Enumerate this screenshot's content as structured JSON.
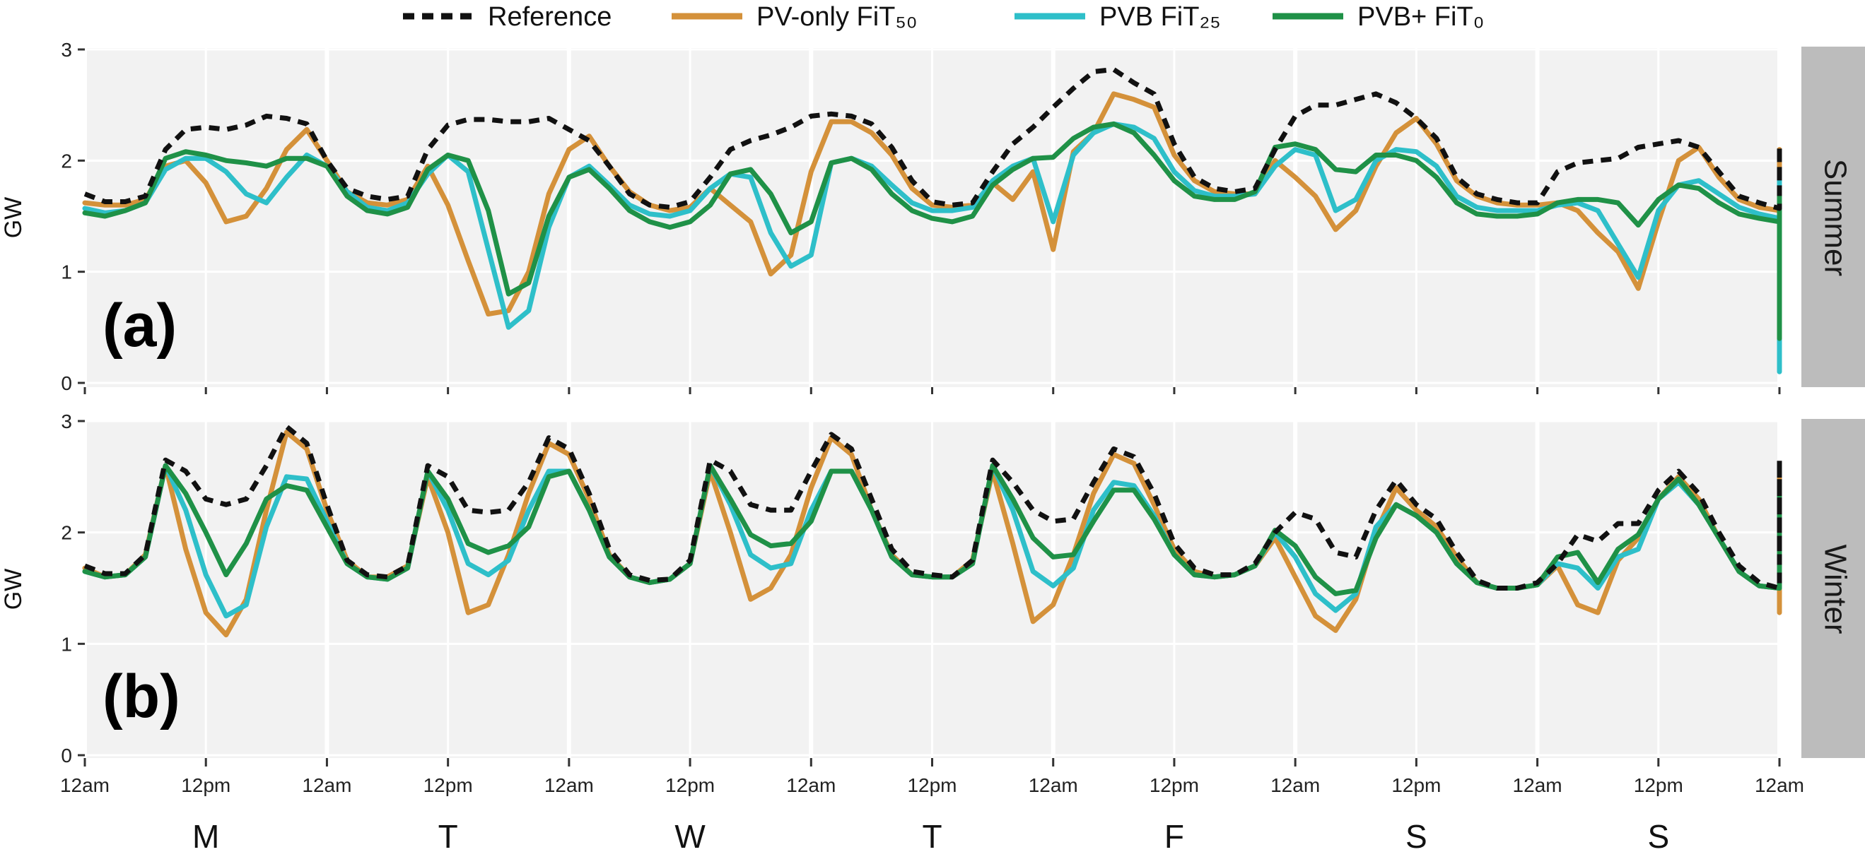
{
  "chart_data": {
    "type": "line",
    "ylabel": "GW",
    "ylim": [
      0,
      3
    ],
    "yticks": [
      "0",
      "1",
      "2",
      "3"
    ],
    "x_tick_labels": [
      "12am",
      "12pm",
      "12am",
      "12pm",
      "12am",
      "12pm",
      "12am",
      "12pm",
      "12am",
      "12pm",
      "12am",
      "12pm",
      "12am",
      "12pm",
      "12am"
    ],
    "day_labels": [
      "M",
      "T",
      "W",
      "T",
      "F",
      "S",
      "S"
    ],
    "hours_per_point": 2,
    "legend": [
      {
        "name": "Reference",
        "color": "#111111",
        "dash": true
      },
      {
        "name": "PV-only FiT₅₀",
        "color": "#D4913A",
        "dash": false
      },
      {
        "name": "PVB FiT₂₅",
        "color": "#2EBFC9",
        "dash": false
      },
      {
        "name": "PVB+ FiT₀",
        "color": "#1F9147",
        "dash": false
      }
    ],
    "panels": [
      {
        "tag": "(a)",
        "strip": "Summer",
        "series": [
          {
            "name": "Reference",
            "values": [
              1.7,
              1.63,
              1.63,
              1.68,
              2.1,
              2.28,
              2.3,
              2.28,
              2.32,
              2.4,
              2.38,
              2.33,
              2.0,
              1.75,
              1.68,
              1.65,
              1.68,
              2.1,
              2.32,
              2.37,
              2.37,
              2.35,
              2.35,
              2.38,
              2.28,
              2.18,
              1.95,
              1.7,
              1.6,
              1.58,
              1.63,
              1.85,
              2.1,
              2.18,
              2.23,
              2.3,
              2.4,
              2.42,
              2.4,
              2.33,
              2.12,
              1.82,
              1.63,
              1.6,
              1.62,
              1.9,
              2.15,
              2.3,
              2.48,
              2.65,
              2.8,
              2.82,
              2.7,
              2.6,
              2.15,
              1.85,
              1.75,
              1.72,
              1.75,
              2.1,
              2.4,
              2.5,
              2.5,
              2.55,
              2.6,
              2.52,
              2.38,
              2.2,
              1.85,
              1.7,
              1.65,
              1.62,
              1.62,
              1.9,
              1.98,
              2.0,
              2.02,
              2.12,
              2.15,
              2.18,
              2.12,
              1.9,
              1.68,
              1.62,
              1.57,
              1.57,
              1.62,
              1.8,
              1.88,
              1.93,
              1.97,
              2.03,
              2.1,
              2.13,
              2.13,
              2.0,
              1.72
            ]
          },
          {
            "name": "PV-only FiT₅₀",
            "values": [
              1.62,
              1.6,
              1.6,
              1.65,
              1.95,
              2.0,
              1.8,
              1.45,
              1.5,
              1.75,
              2.1,
              2.28,
              2.0,
              1.72,
              1.62,
              1.6,
              1.65,
              1.95,
              1.6,
              1.1,
              0.62,
              0.65,
              1.0,
              1.7,
              2.1,
              2.22,
              1.95,
              1.72,
              1.6,
              1.55,
              1.58,
              1.75,
              1.6,
              1.45,
              0.98,
              1.15,
              1.9,
              2.35,
              2.35,
              2.25,
              2.05,
              1.75,
              1.6,
              1.58,
              1.6,
              1.8,
              1.65,
              1.9,
              1.2,
              2.08,
              2.25,
              2.6,
              2.55,
              2.48,
              2.05,
              1.82,
              1.72,
              1.7,
              1.7,
              2.0,
              1.85,
              1.68,
              1.38,
              1.55,
              1.95,
              2.25,
              2.38,
              2.15,
              1.82,
              1.68,
              1.62,
              1.6,
              1.6,
              1.62,
              1.55,
              1.35,
              1.18,
              0.85,
              1.45,
              2.0,
              2.12,
              1.85,
              1.65,
              1.58,
              1.55,
              1.53,
              1.5,
              1.45,
              1.05,
              0.6,
              0.22,
              0.35,
              1.1,
              1.8,
              2.05,
              2.1,
              1.72
            ]
          },
          {
            "name": "PVB FiT₂₅",
            "values": [
              1.57,
              1.53,
              1.55,
              1.62,
              1.92,
              2.02,
              2.02,
              1.9,
              1.7,
              1.62,
              1.85,
              2.05,
              1.95,
              1.72,
              1.58,
              1.55,
              1.62,
              1.88,
              2.05,
              1.9,
              1.2,
              0.5,
              0.65,
              1.4,
              1.85,
              1.95,
              1.78,
              1.6,
              1.52,
              1.5,
              1.55,
              1.75,
              1.88,
              1.85,
              1.35,
              1.05,
              1.15,
              1.98,
              2.02,
              1.95,
              1.78,
              1.62,
              1.55,
              1.55,
              1.58,
              1.82,
              1.95,
              2.02,
              1.45,
              2.05,
              2.25,
              2.33,
              2.3,
              2.2,
              1.9,
              1.73,
              1.68,
              1.68,
              1.7,
              1.95,
              2.1,
              2.05,
              1.55,
              1.65,
              2.0,
              2.1,
              2.08,
              1.95,
              1.68,
              1.58,
              1.55,
              1.55,
              1.55,
              1.6,
              1.62,
              1.55,
              1.25,
              0.95,
              1.55,
              1.78,
              1.82,
              1.7,
              1.58,
              1.52,
              1.48,
              1.48,
              1.5,
              1.45,
              1.3,
              0.55,
              0.1,
              0.45,
              1.3,
              1.75,
              1.85,
              1.8,
              1.62
            ]
          },
          {
            "name": "PVB+ FiT₀",
            "values": [
              1.53,
              1.5,
              1.55,
              1.62,
              2.02,
              2.08,
              2.05,
              2.0,
              1.98,
              1.95,
              2.02,
              2.02,
              1.95,
              1.68,
              1.55,
              1.52,
              1.58,
              1.92,
              2.05,
              2.0,
              1.55,
              0.8,
              0.9,
              1.5,
              1.85,
              1.92,
              1.75,
              1.55,
              1.45,
              1.4,
              1.45,
              1.6,
              1.88,
              1.92,
              1.7,
              1.35,
              1.45,
              1.98,
              2.02,
              1.92,
              1.7,
              1.55,
              1.48,
              1.45,
              1.5,
              1.78,
              1.92,
              2.02,
              2.03,
              2.2,
              2.3,
              2.33,
              2.25,
              2.05,
              1.82,
              1.68,
              1.65,
              1.65,
              1.72,
              2.12,
              2.15,
              2.1,
              1.92,
              1.9,
              2.05,
              2.05,
              2.0,
              1.85,
              1.62,
              1.52,
              1.5,
              1.5,
              1.52,
              1.62,
              1.65,
              1.65,
              1.62,
              1.42,
              1.65,
              1.78,
              1.75,
              1.62,
              1.52,
              1.48,
              1.45,
              1.47,
              1.5,
              1.5,
              1.4,
              0.65,
              0.4,
              0.45,
              1.55,
              1.65,
              1.75,
              1.65,
              1.55
            ]
          }
        ]
      },
      {
        "tag": "(b)",
        "strip": "Winter",
        "series": [
          {
            "name": "Reference",
            "values": [
              1.7,
              1.63,
              1.63,
              1.8,
              2.65,
              2.55,
              2.3,
              2.25,
              2.3,
              2.6,
              2.95,
              2.8,
              2.25,
              1.75,
              1.62,
              1.6,
              1.7,
              2.6,
              2.5,
              2.2,
              2.18,
              2.2,
              2.45,
              2.85,
              2.75,
              2.35,
              1.85,
              1.62,
              1.57,
              1.58,
              1.75,
              2.65,
              2.55,
              2.25,
              2.2,
              2.2,
              2.55,
              2.88,
              2.75,
              2.3,
              1.85,
              1.65,
              1.62,
              1.6,
              1.75,
              2.65,
              2.45,
              2.2,
              2.1,
              2.12,
              2.45,
              2.75,
              2.68,
              2.35,
              1.9,
              1.68,
              1.62,
              1.62,
              1.72,
              2.0,
              2.18,
              2.12,
              1.82,
              1.78,
              2.2,
              2.47,
              2.25,
              2.12,
              1.82,
              1.57,
              1.5,
              1.5,
              1.55,
              1.72,
              1.98,
              1.92,
              2.08,
              2.08,
              2.38,
              2.55,
              2.35,
              2.0,
              1.7,
              1.55,
              1.5,
              1.5,
              1.65,
              2.42,
              2.42,
              2.18,
              2.18,
              2.22,
              2.5,
              2.65,
              2.55,
              2.2,
              1.72
            ]
          },
          {
            "name": "PV-only FiT₅₀",
            "values": [
              1.68,
              1.6,
              1.62,
              1.8,
              2.6,
              1.85,
              1.28,
              1.08,
              1.4,
              2.2,
              2.9,
              2.75,
              2.2,
              1.75,
              1.6,
              1.6,
              1.7,
              2.5,
              2.0,
              1.28,
              1.35,
              1.8,
              2.35,
              2.8,
              2.7,
              2.3,
              1.8,
              1.6,
              1.55,
              1.58,
              1.72,
              2.55,
              2.0,
              1.4,
              1.5,
              1.8,
              2.4,
              2.85,
              2.7,
              2.2,
              1.8,
              1.62,
              1.6,
              1.6,
              1.75,
              2.55,
              1.9,
              1.2,
              1.35,
              1.8,
              2.35,
              2.7,
              2.62,
              2.25,
              1.85,
              1.65,
              1.6,
              1.62,
              1.7,
              1.95,
              1.6,
              1.25,
              1.12,
              1.4,
              2.0,
              2.4,
              2.2,
              2.05,
              1.78,
              1.55,
              1.5,
              1.5,
              1.53,
              1.7,
              1.35,
              1.28,
              1.75,
              1.95,
              2.3,
              2.5,
              2.3,
              1.95,
              1.65,
              1.52,
              1.5,
              1.5,
              1.62,
              2.35,
              1.55,
              1.28,
              1.5,
              1.7,
              2.3,
              2.6,
              2.5,
              2.15,
              1.7
            ]
          },
          {
            "name": "PVB FiT₂₅",
            "values": [
              1.65,
              1.6,
              1.62,
              1.78,
              2.6,
              2.2,
              1.62,
              1.25,
              1.35,
              2.05,
              2.5,
              2.48,
              2.1,
              1.72,
              1.6,
              1.58,
              1.68,
              2.55,
              2.2,
              1.72,
              1.62,
              1.75,
              2.2,
              2.55,
              2.55,
              2.2,
              1.78,
              1.6,
              1.55,
              1.58,
              1.72,
              2.6,
              2.25,
              1.8,
              1.68,
              1.72,
              2.2,
              2.55,
              2.55,
              2.2,
              1.78,
              1.62,
              1.6,
              1.6,
              1.72,
              2.6,
              2.2,
              1.65,
              1.52,
              1.68,
              2.2,
              2.45,
              2.42,
              2.15,
              1.8,
              1.62,
              1.6,
              1.62,
              1.7,
              2.0,
              1.78,
              1.45,
              1.3,
              1.45,
              2.05,
              2.25,
              2.15,
              2.0,
              1.72,
              1.55,
              1.5,
              1.5,
              1.53,
              1.72,
              1.68,
              1.5,
              1.78,
              1.85,
              2.3,
              2.45,
              2.25,
              1.95,
              1.65,
              1.52,
              1.5,
              1.5,
              1.6,
              2.35,
              1.85,
              1.7,
              1.68,
              1.75,
              2.25,
              2.4,
              2.35,
              2.05,
              1.68
            ]
          },
          {
            "name": "PVB+ FiT₀",
            "values": [
              1.65,
              1.6,
              1.62,
              1.78,
              2.6,
              2.35,
              2.0,
              1.62,
              1.9,
              2.3,
              2.42,
              2.38,
              2.05,
              1.72,
              1.6,
              1.58,
              1.68,
              2.55,
              2.3,
              1.9,
              1.82,
              1.88,
              2.05,
              2.5,
              2.55,
              2.2,
              1.78,
              1.6,
              1.55,
              1.58,
              1.72,
              2.6,
              2.3,
              1.98,
              1.88,
              1.9,
              2.1,
              2.55,
              2.55,
              2.2,
              1.78,
              1.62,
              1.6,
              1.6,
              1.72,
              2.6,
              2.3,
              1.95,
              1.78,
              1.8,
              2.1,
              2.38,
              2.38,
              2.12,
              1.8,
              1.62,
              1.6,
              1.62,
              1.7,
              2.02,
              1.88,
              1.6,
              1.45,
              1.48,
              1.95,
              2.25,
              2.15,
              2.0,
              1.72,
              1.55,
              1.5,
              1.5,
              1.53,
              1.78,
              1.82,
              1.55,
              1.85,
              1.98,
              2.3,
              2.48,
              2.25,
              1.95,
              1.65,
              1.52,
              1.5,
              1.5,
              1.6,
              2.35,
              1.92,
              1.88,
              1.88,
              1.95,
              2.25,
              2.38,
              2.3,
              2.02,
              1.68
            ]
          }
        ]
      }
    ]
  }
}
